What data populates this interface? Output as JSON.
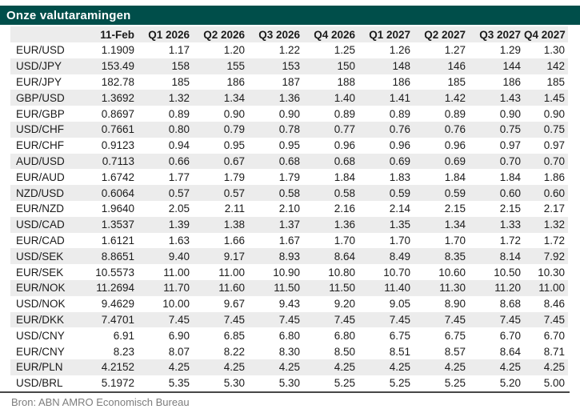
{
  "title": "Onze valutaramingen",
  "source": "Bron: ABN AMRO Economisch Bureau",
  "colors": {
    "title_bar_background": "#004E4A",
    "title_text": "#FFFFFF",
    "stripe": "#ECECEC",
    "body_text": "#1B1B1B",
    "source_text": "#7D7D7D",
    "divider": "#474747"
  },
  "chart_data": {
    "type": "table",
    "title": "Onze valutaramingen",
    "columns": [
      "",
      "11-Feb",
      "Q1 2026",
      "Q2 2026",
      "Q3 2026",
      "Q4 2026",
      "Q1 2027",
      "Q2 2027",
      "Q3 2027",
      "Q4 2027"
    ],
    "rows": [
      {
        "pair": "EUR/USD",
        "values": [
          "1.1909",
          "1.17",
          "1.20",
          "1.22",
          "1.25",
          "1.26",
          "1.27",
          "1.29",
          "1.30"
        ],
        "shaded": false
      },
      {
        "pair": "USD/JPY",
        "values": [
          "153.49",
          "158",
          "155",
          "153",
          "150",
          "148",
          "146",
          "144",
          "142"
        ],
        "shaded": true
      },
      {
        "pair": "EUR/JPY",
        "values": [
          "182.78",
          "185",
          "186",
          "187",
          "188",
          "186",
          "185",
          "186",
          "185"
        ],
        "shaded": false
      },
      {
        "pair": "GBP/USD",
        "values": [
          "1.3692",
          "1.32",
          "1.34",
          "1.36",
          "1.40",
          "1.41",
          "1.42",
          "1.43",
          "1.45"
        ],
        "shaded": true
      },
      {
        "pair": "EUR/GBP",
        "values": [
          "0.8697",
          "0.89",
          "0.90",
          "0.90",
          "0.89",
          "0.89",
          "0.89",
          "0.90",
          "0.90"
        ],
        "shaded": false
      },
      {
        "pair": "USD/CHF",
        "values": [
          "0.7661",
          "0.80",
          "0.79",
          "0.78",
          "0.77",
          "0.76",
          "0.76",
          "0.75",
          "0.75"
        ],
        "shaded": true
      },
      {
        "pair": "EUR/CHF",
        "values": [
          "0.9123",
          "0.94",
          "0.95",
          "0.95",
          "0.96",
          "0.96",
          "0.96",
          "0.97",
          "0.97"
        ],
        "shaded": false
      },
      {
        "pair": "AUD/USD",
        "values": [
          "0.7113",
          "0.66",
          "0.67",
          "0.68",
          "0.68",
          "0.69",
          "0.69",
          "0.70",
          "0.70"
        ],
        "shaded": true
      },
      {
        "pair": "EUR/AUD",
        "values": [
          "1.6742",
          "1.77",
          "1.79",
          "1.79",
          "1.84",
          "1.83",
          "1.84",
          "1.84",
          "1.86"
        ],
        "shaded": false
      },
      {
        "pair": "NZD/USD",
        "values": [
          "0.6064",
          "0.57",
          "0.57",
          "0.58",
          "0.58",
          "0.59",
          "0.59",
          "0.60",
          "0.60"
        ],
        "shaded": true
      },
      {
        "pair": "EUR/NZD",
        "values": [
          "1.9640",
          "2.05",
          "2.11",
          "2.10",
          "2.16",
          "2.14",
          "2.15",
          "2.15",
          "2.17"
        ],
        "shaded": false
      },
      {
        "pair": "USD/CAD",
        "values": [
          "1.3537",
          "1.39",
          "1.38",
          "1.37",
          "1.36",
          "1.35",
          "1.34",
          "1.33",
          "1.32"
        ],
        "shaded": true
      },
      {
        "pair": "EUR/CAD",
        "values": [
          "1.6121",
          "1.63",
          "1.66",
          "1.67",
          "1.70",
          "1.70",
          "1.70",
          "1.72",
          "1.72"
        ],
        "shaded": false
      },
      {
        "pair": "USD/SEK",
        "values": [
          "8.8651",
          "9.40",
          "9.17",
          "8.93",
          "8.64",
          "8.49",
          "8.35",
          "8.14",
          "7.92"
        ],
        "shaded": true
      },
      {
        "pair": "EUR/SEK",
        "values": [
          "10.5573",
          "11.00",
          "11.00",
          "10.90",
          "10.80",
          "10.70",
          "10.60",
          "10.50",
          "10.30"
        ],
        "shaded": false
      },
      {
        "pair": "EUR/NOK",
        "values": [
          "11.2694",
          "11.70",
          "11.60",
          "11.50",
          "11.50",
          "11.40",
          "11.30",
          "11.20",
          "11.00"
        ],
        "shaded": true
      },
      {
        "pair": "USD/NOK",
        "values": [
          "9.4629",
          "10.00",
          "9.67",
          "9.43",
          "9.20",
          "9.05",
          "8.90",
          "8.68",
          "8.46"
        ],
        "shaded": false
      },
      {
        "pair": "EUR/DKK",
        "values": [
          "7.4701",
          "7.45",
          "7.45",
          "7.45",
          "7.45",
          "7.45",
          "7.45",
          "7.45",
          "7.45"
        ],
        "shaded": true
      },
      {
        "pair": "USD/CNY",
        "values": [
          "6.91",
          "6.90",
          "6.85",
          "6.80",
          "6.80",
          "6.75",
          "6.75",
          "6.70",
          "6.70"
        ],
        "shaded": false
      },
      {
        "pair": "EUR/CNY",
        "values": [
          "8.23",
          "8.07",
          "8.22",
          "8.30",
          "8.50",
          "8.51",
          "8.57",
          "8.64",
          "8.71"
        ],
        "shaded": false
      },
      {
        "pair": "EUR/PLN",
        "values": [
          "4.2152",
          "4.25",
          "4.25",
          "4.25",
          "4.25",
          "4.25",
          "4.25",
          "4.25",
          "4.25"
        ],
        "shaded": true
      },
      {
        "pair": "USD/BRL",
        "values": [
          "5.1972",
          "5.35",
          "5.30",
          "5.30",
          "5.25",
          "5.25",
          "5.25",
          "5.20",
          "5.00"
        ],
        "shaded": false
      }
    ]
  }
}
